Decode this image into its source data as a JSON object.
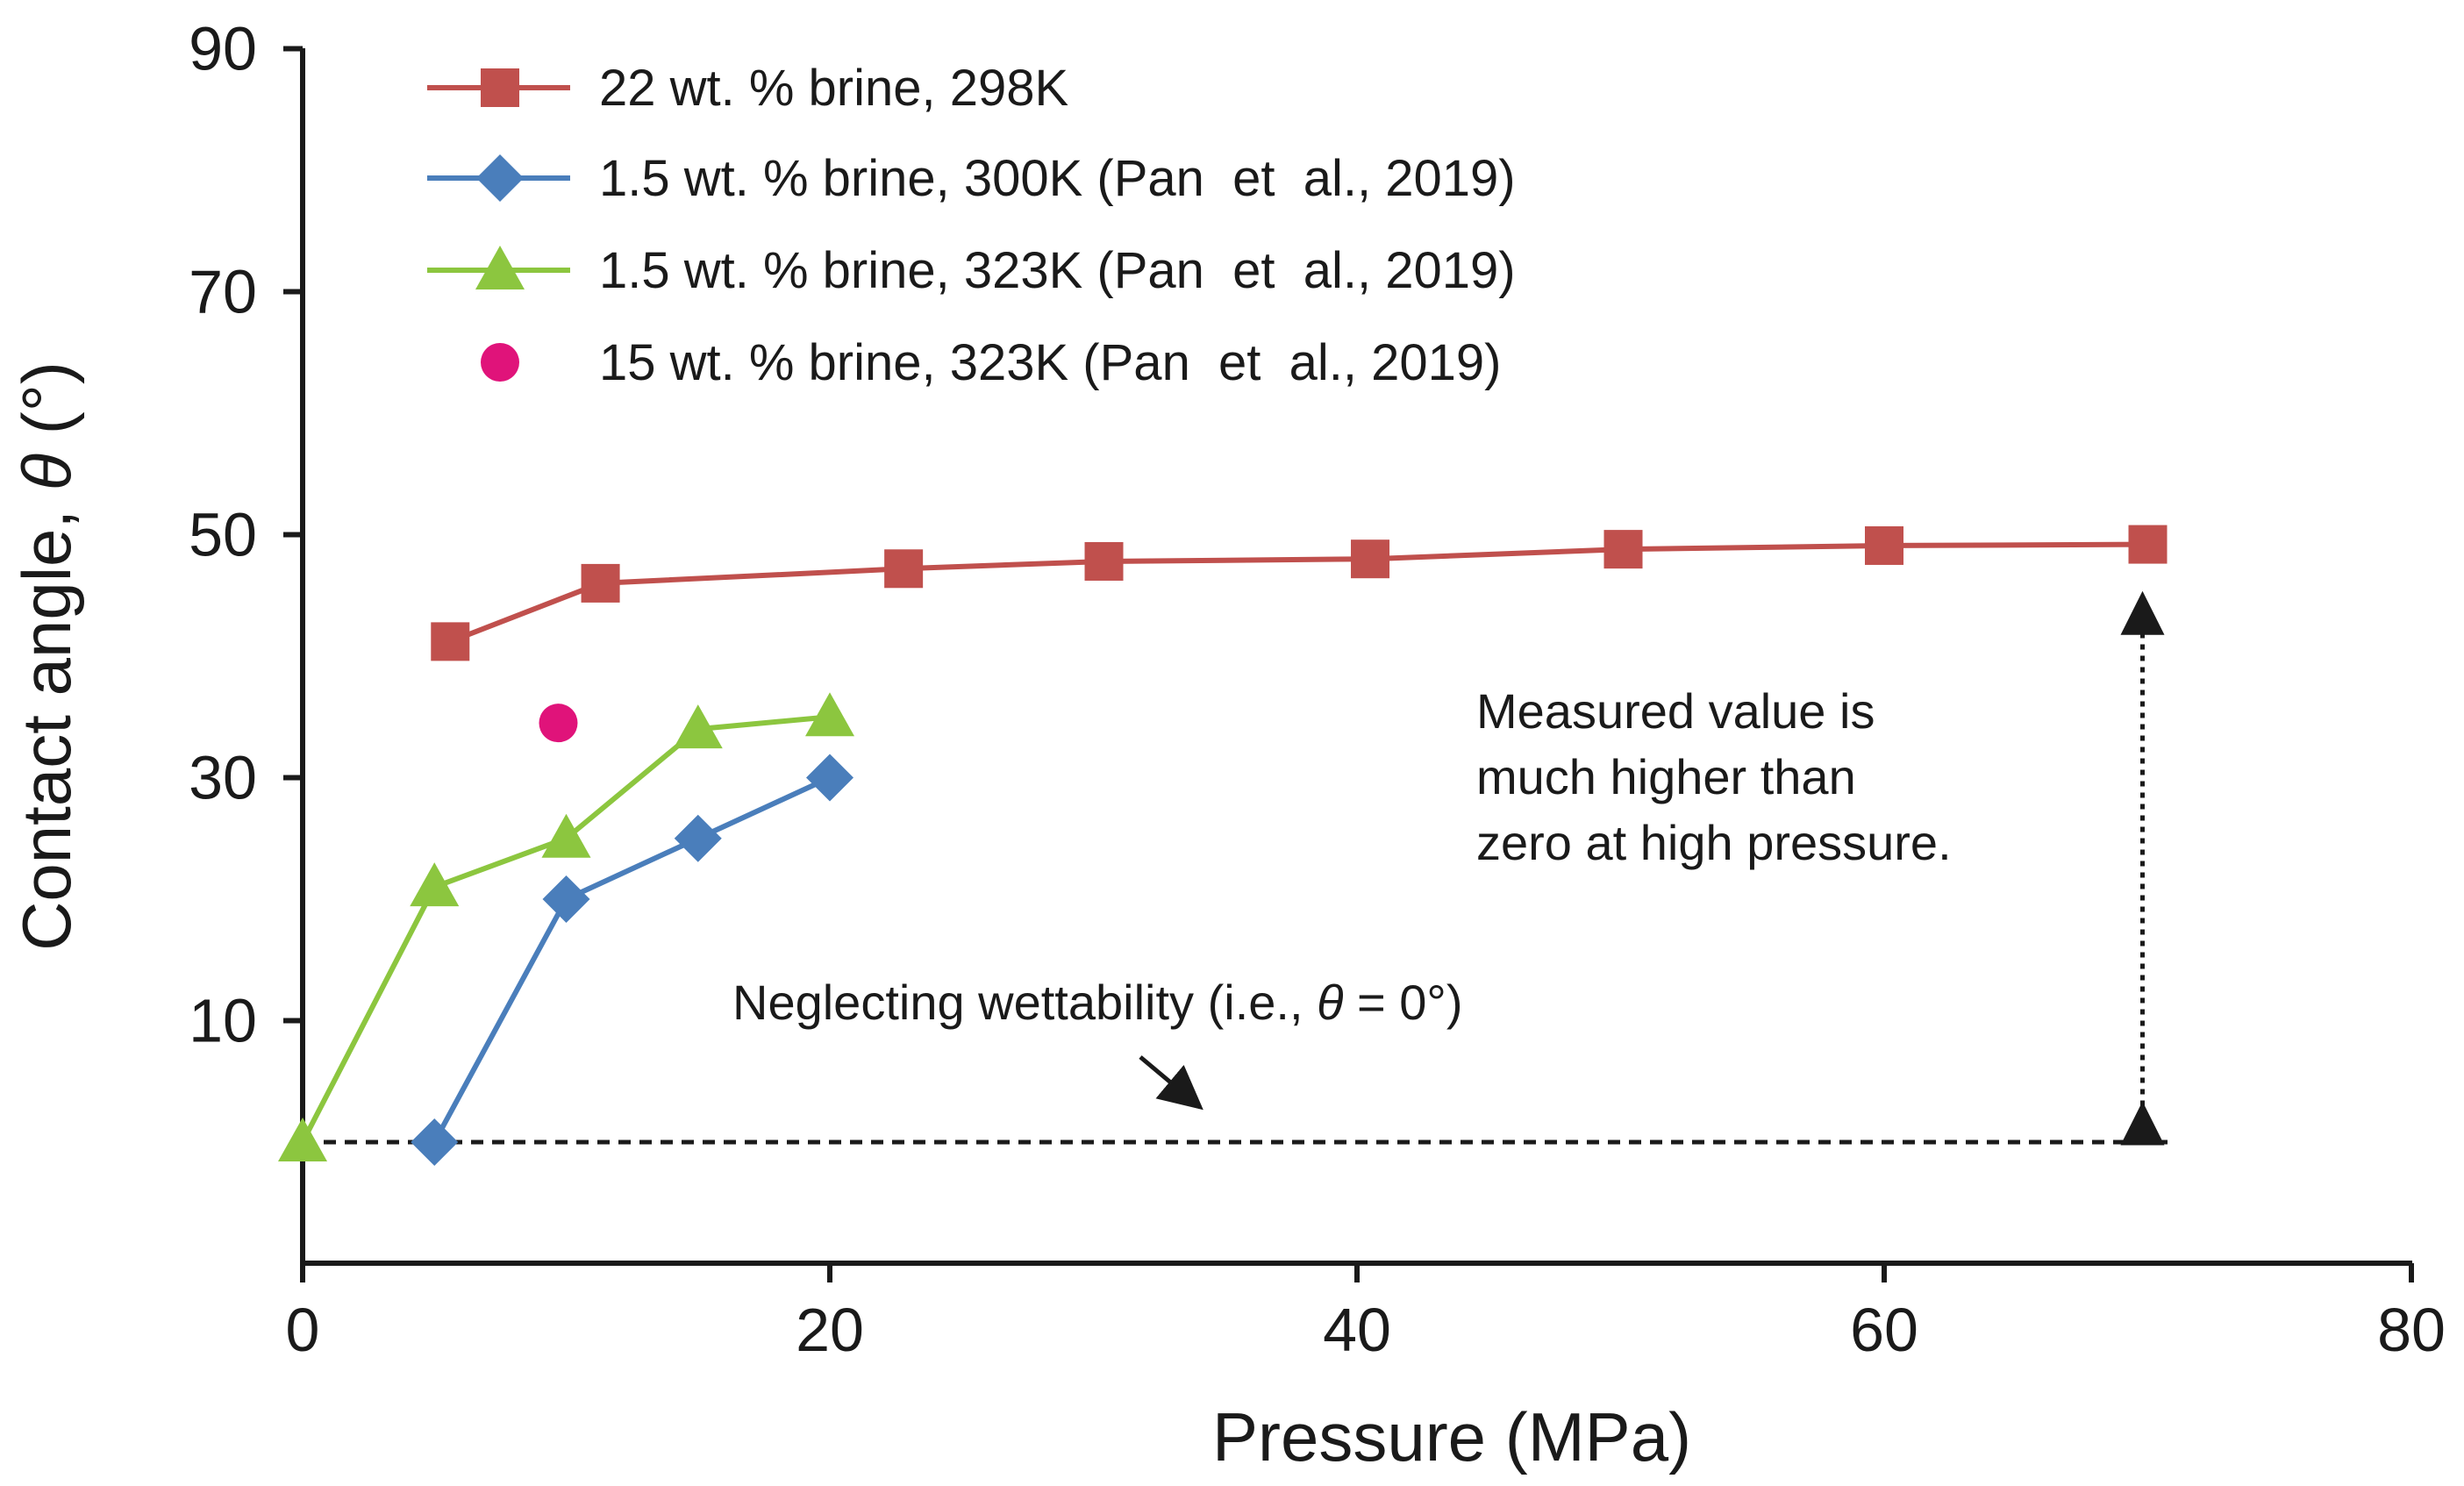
{
  "chart_data": {
    "type": "line",
    "title": "",
    "xlabel": "Pressure (MPa)",
    "ylabel_prefix": "Contact angle, ",
    "ylabel_symbol": "θ",
    "ylabel_suffix": " (°)",
    "xlim": [
      0,
      80
    ],
    "ylim": [
      -10,
      90
    ],
    "x_ticks": [
      0,
      20,
      40,
      60,
      80
    ],
    "y_ticks": [
      10,
      30,
      50,
      70,
      90
    ],
    "grid": false,
    "legend_position": "top-left",
    "series": [
      {
        "name": "22 wt. % brine, 298K",
        "color": "#c0504d",
        "marker": "square",
        "line": true,
        "x": [
          5.6,
          11.3,
          22.8,
          30.4,
          40.5,
          50.1,
          60.0,
          70.0
        ],
        "y": [
          41.2,
          46.0,
          47.2,
          47.8,
          48.0,
          48.8,
          49.1,
          49.2
        ]
      },
      {
        "name": "1.5 wt. % brine, 300K (Pan  et  al., 2019)",
        "color": "#4a7ebb",
        "marker": "diamond",
        "line": true,
        "x": [
          5,
          10,
          15,
          20
        ],
        "y": [
          0,
          20,
          25,
          30
        ]
      },
      {
        "name": "1.5 wt. % brine, 323K (Pan  et  al., 2019)",
        "color": "#8cc63f",
        "marker": "triangle",
        "line": true,
        "x": [
          0,
          5,
          10,
          15,
          20
        ],
        "y": [
          0,
          21,
          25,
          34,
          35
        ]
      },
      {
        "name": "15 wt. % brine, 323K (Pan  et  al., 2019)",
        "color": "#e0137a",
        "marker": "circle",
        "line": false,
        "x": [
          9.7
        ],
        "y": [
          34.5
        ]
      }
    ],
    "reference_line": {
      "y": 0,
      "style": "dashed",
      "x_range": [
        0,
        70
      ]
    },
    "annotations": {
      "neglect_prefix": "Neglecting wettability (i.e., ",
      "neglect_symbol": "θ",
      "neglect_suffix": " = 0°)",
      "measured_lines": [
        "Measured value is",
        "much higher than",
        "zero at high pressure."
      ],
      "double_arrow": {
        "x": 69.8,
        "y_from": 3,
        "y_to": 45
      }
    }
  }
}
